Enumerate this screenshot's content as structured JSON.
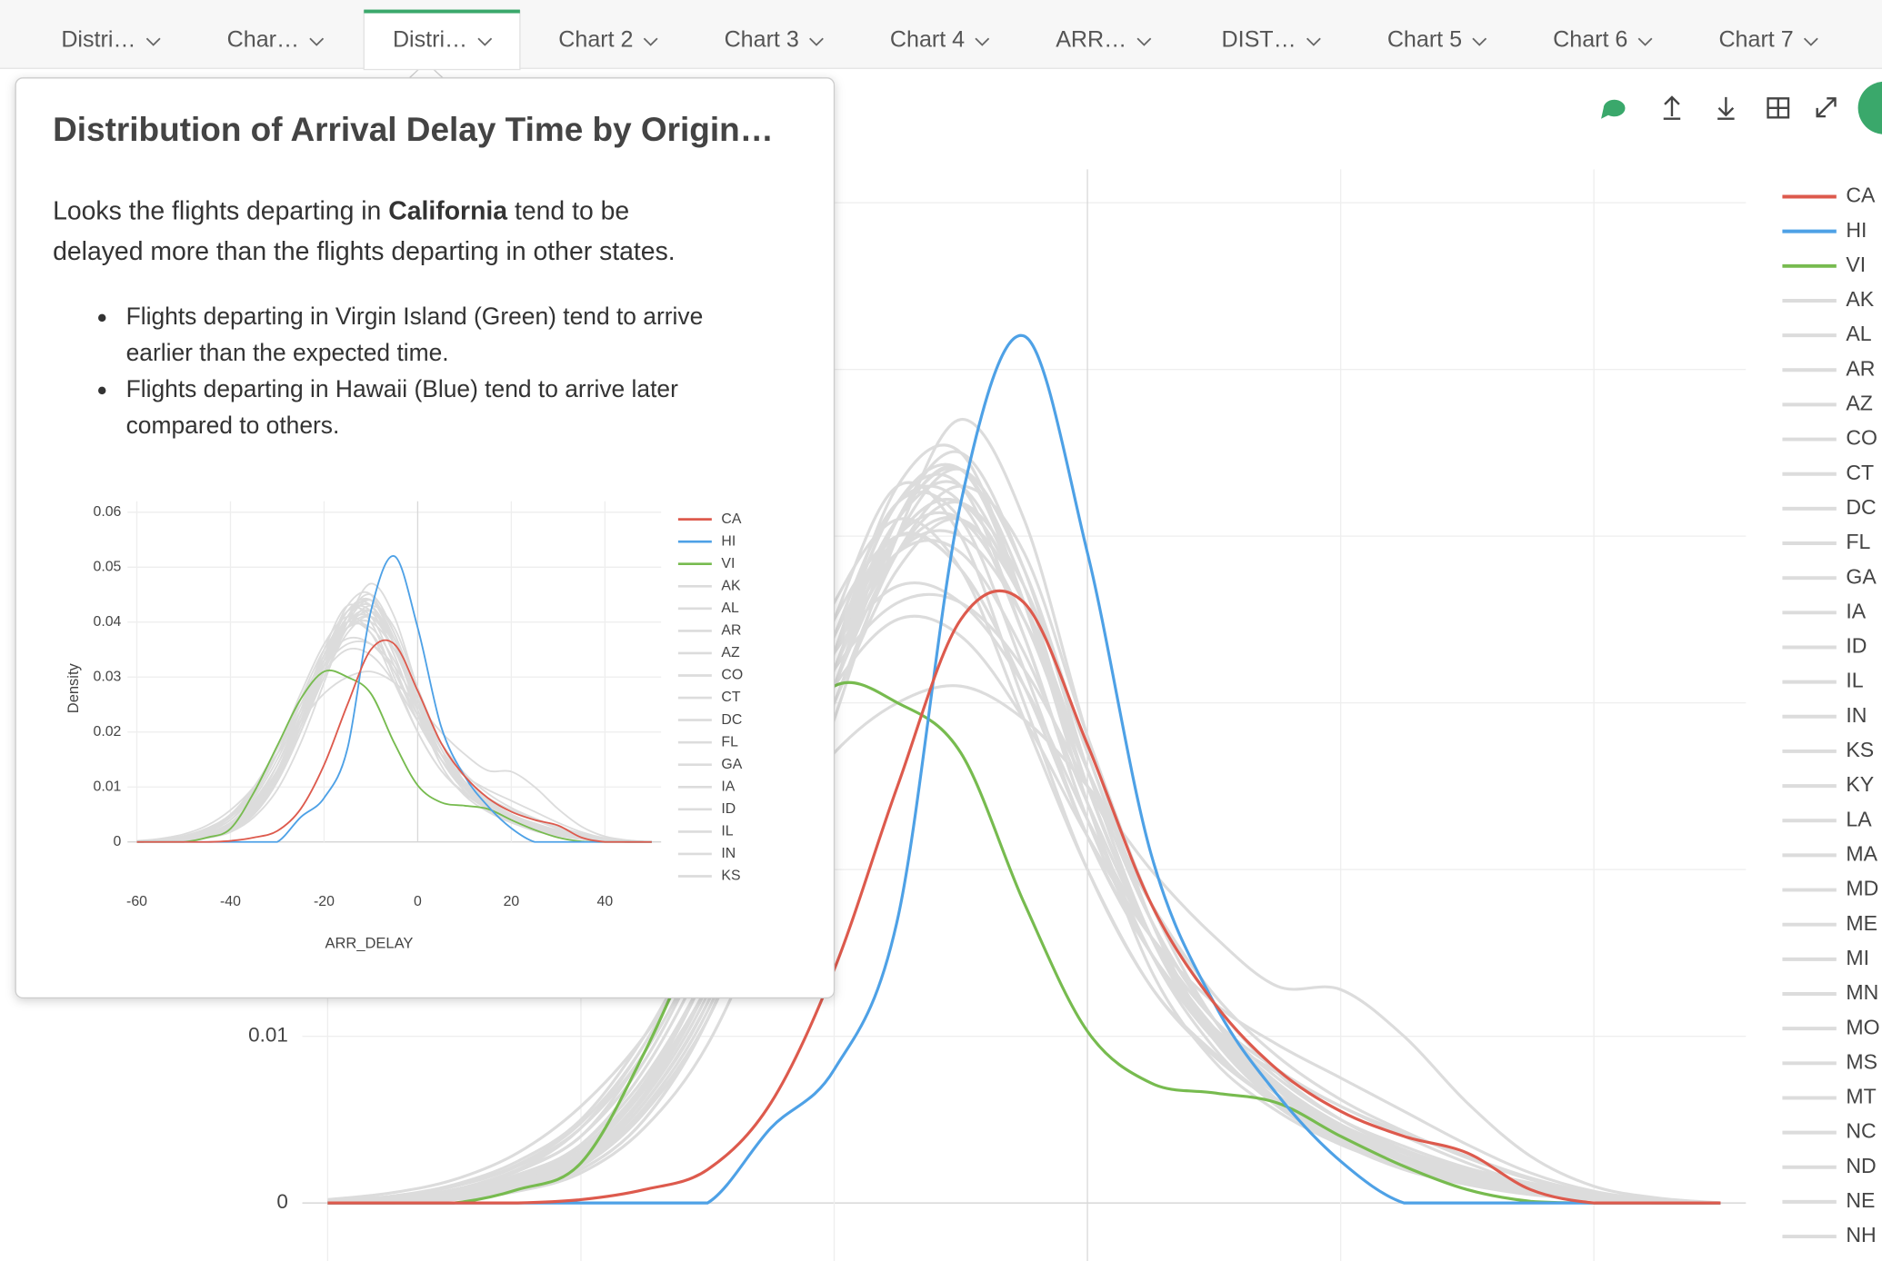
{
  "tabs": [
    "Distri…",
    "Char…",
    "Distri…",
    "Chart 2",
    "Chart 3",
    "Chart 4",
    "ARR…",
    "DIST…",
    "Chart 5",
    "Chart 6",
    "Chart 7"
  ],
  "active_tab": 2,
  "popover": {
    "title": "Distribution of Arrival Delay Time by Origin…",
    "paragraph": [
      [
        {
          "text": "Looks the flights departing in "
        },
        {
          "text": "California",
          "bold": true
        },
        {
          "text": " tend to be"
        }
      ],
      [
        {
          "text": "delayed more than the flights departing in other states."
        }
      ]
    ],
    "bullets": [
      [
        "Flights departing in Virgin Island (Green) tend to arrive",
        "earlier than the expected time."
      ],
      [
        "Flights departing in Hawaii (Blue) tend to arrive later",
        "compared to others."
      ]
    ]
  },
  "chart_data": {
    "type": "line",
    "x_label": "ARR_DELAY",
    "y_label": "Density",
    "x": [
      -60,
      -55,
      -50,
      -45,
      -40,
      -35,
      -30,
      -25,
      -20,
      -15,
      -10,
      -5,
      0,
      5,
      10,
      15,
      20,
      25,
      30,
      35,
      40,
      45,
      50
    ],
    "xlim": [
      -62,
      52
    ],
    "xticks": [
      -60,
      -40,
      -20,
      0,
      20,
      40
    ],
    "ylim": [
      0,
      0.062
    ],
    "yticks": [
      0,
      0.01,
      0.02,
      0.03,
      0.04,
      0.05,
      0.06
    ],
    "grid": true,
    "series": [
      {
        "name": "CA",
        "color": "#dd5a4d",
        "values": [
          0,
          0,
          0,
          0,
          0.0002,
          0.0008,
          0.002,
          0.006,
          0.014,
          0.025,
          0.035,
          0.036,
          0.0275,
          0.018,
          0.012,
          0.008,
          0.0055,
          0.004,
          0.003,
          0.0008,
          0,
          0,
          0
        ]
      },
      {
        "name": "HI",
        "color": "#4ea1e6",
        "values": [
          0,
          0,
          0,
          0,
          0,
          0,
          0,
          0.0045,
          0.008,
          0.017,
          0.042,
          0.052,
          0.039,
          0.021,
          0.012,
          0.0065,
          0.0025,
          0,
          0,
          0,
          0,
          0,
          0
        ]
      },
      {
        "name": "VI",
        "color": "#77bb4f",
        "values": [
          0,
          0,
          0,
          0.0008,
          0.0024,
          0.009,
          0.0175,
          0.026,
          0.031,
          0.03,
          0.027,
          0.018,
          0.0103,
          0.0072,
          0.0066,
          0.006,
          0.004,
          0.0022,
          0.0008,
          0.0001,
          0,
          0,
          0
        ]
      },
      {
        "name": "AK",
        "color": "#dcdcdc",
        "values": [
          0,
          0.0002,
          0.0006,
          0.0015,
          0.003,
          0.007,
          0.013,
          0.021,
          0.03,
          0.038,
          0.041,
          0.036,
          0.026,
          0.017,
          0.011,
          0.007,
          0.0045,
          0.003,
          0.0018,
          0.001,
          0.0004,
          0.0001,
          0
        ]
      },
      {
        "name": "AL",
        "color": "#dcdcdc",
        "values": [
          0,
          0.0001,
          0.0004,
          0.001,
          0.0025,
          0.006,
          0.012,
          0.022,
          0.033,
          0.042,
          0.043,
          0.034,
          0.023,
          0.015,
          0.01,
          0.0065,
          0.004,
          0.0025,
          0.0015,
          0.0008,
          0.0003,
          0.0001,
          0
        ]
      },
      {
        "name": "AR",
        "color": "#dcdcdc",
        "values": [
          0.0001,
          0.0003,
          0.0008,
          0.002,
          0.004,
          0.009,
          0.016,
          0.025,
          0.034,
          0.04,
          0.038,
          0.031,
          0.022,
          0.015,
          0.01,
          0.0068,
          0.0045,
          0.003,
          0.0018,
          0.0009,
          0.0004,
          0.0001,
          0
        ]
      },
      {
        "name": "AZ",
        "color": "#dcdcdc",
        "values": [
          0,
          0.0001,
          0.0003,
          0.0009,
          0.002,
          0.005,
          0.011,
          0.02,
          0.031,
          0.041,
          0.045,
          0.038,
          0.026,
          0.016,
          0.01,
          0.0062,
          0.0038,
          0.0022,
          0.0012,
          0.0006,
          0.0002,
          0,
          0
        ]
      },
      {
        "name": "CO",
        "color": "#dcdcdc",
        "values": [
          0,
          0.0002,
          0.0005,
          0.0013,
          0.0028,
          0.0065,
          0.013,
          0.022,
          0.032,
          0.039,
          0.04,
          0.035,
          0.026,
          0.018,
          0.012,
          0.0078,
          0.005,
          0.0032,
          0.002,
          0.0011,
          0.0005,
          0.0001,
          0
        ]
      },
      {
        "name": "CT",
        "color": "#dcdcdc",
        "values": [
          0,
          0.0001,
          0.0004,
          0.0012,
          0.003,
          0.007,
          0.014,
          0.024,
          0.035,
          0.043,
          0.04,
          0.03,
          0.02,
          0.013,
          0.009,
          0.006,
          0.0042,
          0.0028,
          0.0017,
          0.0009,
          0.0003,
          0.0001,
          0
        ]
      },
      {
        "name": "DC",
        "color": "#dcdcdc",
        "values": [
          0,
          0,
          0.0002,
          0.0007,
          0.0018,
          0.0045,
          0.0095,
          0.018,
          0.029,
          0.04,
          0.047,
          0.041,
          0.028,
          0.017,
          0.01,
          0.006,
          0.0036,
          0.002,
          0.0011,
          0.0005,
          0.0002,
          0,
          0
        ]
      },
      {
        "name": "FL",
        "color": "#dcdcdc",
        "values": [
          0.0001,
          0.0003,
          0.0007,
          0.0017,
          0.0035,
          0.008,
          0.015,
          0.024,
          0.033,
          0.039,
          0.039,
          0.033,
          0.024,
          0.016,
          0.011,
          0.0075,
          0.005,
          0.0034,
          0.0021,
          0.0012,
          0.0005,
          0.0002,
          0
        ]
      },
      {
        "name": "GA",
        "color": "#dcdcdc",
        "values": [
          0,
          0.0001,
          0.0003,
          0.001,
          0.0024,
          0.006,
          0.012,
          0.021,
          0.031,
          0.039,
          0.042,
          0.037,
          0.027,
          0.017,
          0.011,
          0.0068,
          0.0043,
          0.0027,
          0.0016,
          0.0008,
          0.0003,
          0.0001,
          0
        ]
      },
      {
        "name": "IA",
        "color": "#dcdcdc",
        "values": [
          0,
          0.0002,
          0.0006,
          0.0016,
          0.0035,
          0.0075,
          0.014,
          0.023,
          0.033,
          0.041,
          0.044,
          0.036,
          0.024,
          0.014,
          0.0085,
          0.0055,
          0.0035,
          0.0022,
          0.0013,
          0.0006,
          0.0002,
          0,
          0
        ]
      },
      {
        "name": "ID",
        "color": "#dcdcdc",
        "values": [
          0.0001,
          0.0004,
          0.001,
          0.0022,
          0.0045,
          0.009,
          0.016,
          0.024,
          0.031,
          0.035,
          0.034,
          0.029,
          0.022,
          0.016,
          0.012,
          0.0095,
          0.0075,
          0.0055,
          0.0035,
          0.0018,
          0.0007,
          0.0002,
          0
        ]
      },
      {
        "name": "IL",
        "color": "#dcdcdc",
        "values": [
          0,
          0.0001,
          0.0003,
          0.0009,
          0.0022,
          0.0055,
          0.011,
          0.02,
          0.031,
          0.04,
          0.044,
          0.038,
          0.027,
          0.017,
          0.011,
          0.007,
          0.0045,
          0.0028,
          0.0016,
          0.0008,
          0.0003,
          0.0001,
          0
        ]
      },
      {
        "name": "IN",
        "color": "#dcdcdc",
        "values": [
          0,
          0.0001,
          0.0004,
          0.0011,
          0.0026,
          0.006,
          0.012,
          0.021,
          0.032,
          0.04,
          0.042,
          0.036,
          0.026,
          0.017,
          0.011,
          0.0069,
          0.0042,
          0.0026,
          0.0015,
          0.0007,
          0.0003,
          0.0001,
          0
        ]
      },
      {
        "name": "KS",
        "color": "#dcdcdc",
        "values": [
          0.0001,
          0.0003,
          0.0008,
          0.002,
          0.0045,
          0.0095,
          0.017,
          0.027,
          0.036,
          0.041,
          0.038,
          0.029,
          0.02,
          0.013,
          0.0088,
          0.006,
          0.0041,
          0.0027,
          0.0016,
          0.0008,
          0.0003,
          0.0001,
          0
        ]
      },
      {
        "name": "KY",
        "color": "#dcdcdc",
        "values": [
          0,
          0.0001,
          0.0003,
          0.0008,
          0.002,
          0.005,
          0.011,
          0.021,
          0.033,
          0.043,
          0.045,
          0.036,
          0.024,
          0.015,
          0.0093,
          0.0058,
          0.0036,
          0.0022,
          0.0012,
          0.0006,
          0.0002,
          0,
          0
        ]
      },
      {
        "name": "LA",
        "color": "#dcdcdc",
        "values": [
          0,
          0.0002,
          0.0006,
          0.0015,
          0.0033,
          0.0072,
          0.014,
          0.023,
          0.033,
          0.04,
          0.041,
          0.035,
          0.025,
          0.016,
          0.0105,
          0.007,
          0.0046,
          0.003,
          0.0018,
          0.0009,
          0.0003,
          0.0001,
          0
        ]
      },
      {
        "name": "MA",
        "color": "#dcdcdc",
        "values": [
          0,
          0.0001,
          0.0004,
          0.0012,
          0.0029,
          0.0068,
          0.013,
          0.023,
          0.034,
          0.042,
          0.041,
          0.032,
          0.022,
          0.015,
          0.0105,
          0.0078,
          0.0058,
          0.004,
          0.0024,
          0.0011,
          0.0004,
          0.0001,
          0
        ]
      },
      {
        "name": "MD",
        "color": "#dcdcdc",
        "values": [
          0,
          0.0001,
          0.0003,
          0.0009,
          0.0022,
          0.0054,
          0.011,
          0.02,
          0.03,
          0.039,
          0.043,
          0.039,
          0.028,
          0.018,
          0.011,
          0.0068,
          0.0042,
          0.0026,
          0.0014,
          0.0007,
          0.0002,
          0,
          0
        ]
      },
      {
        "name": "ME",
        "color": "#dcdcdc",
        "values": [
          0.0002,
          0.0006,
          0.0014,
          0.003,
          0.0058,
          0.01,
          0.016,
          0.022,
          0.027,
          0.03,
          0.031,
          0.029,
          0.025,
          0.02,
          0.016,
          0.013,
          0.0128,
          0.01,
          0.006,
          0.0028,
          0.001,
          0.0003,
          0
        ]
      },
      {
        "name": "MI",
        "color": "#dcdcdc",
        "values": [
          0,
          0.0001,
          0.0004,
          0.0011,
          0.0026,
          0.006,
          0.012,
          0.022,
          0.033,
          0.041,
          0.043,
          0.036,
          0.025,
          0.016,
          0.0102,
          0.0065,
          0.004,
          0.0025,
          0.0014,
          0.0007,
          0.0002,
          0,
          0
        ]
      },
      {
        "name": "MN",
        "color": "#dcdcdc",
        "values": [
          0,
          0.0002,
          0.0005,
          0.0014,
          0.0031,
          0.007,
          0.013,
          0.022,
          0.032,
          0.039,
          0.041,
          0.036,
          0.026,
          0.017,
          0.011,
          0.0072,
          0.0047,
          0.003,
          0.0018,
          0.0009,
          0.0003,
          0.0001,
          0
        ]
      },
      {
        "name": "MO",
        "color": "#dcdcdc",
        "values": [
          0,
          0.0001,
          0.0004,
          0.0011,
          0.0027,
          0.0063,
          0.0125,
          0.022,
          0.033,
          0.042,
          0.044,
          0.037,
          0.025,
          0.016,
          0.0098,
          0.006,
          0.0037,
          0.0023,
          0.0013,
          0.0006,
          0.0002,
          0,
          0
        ]
      },
      {
        "name": "MS",
        "color": "#dcdcdc",
        "values": [
          0.0001,
          0.0003,
          0.0008,
          0.0019,
          0.004,
          0.0085,
          0.016,
          0.026,
          0.035,
          0.04,
          0.038,
          0.031,
          0.022,
          0.015,
          0.01,
          0.0069,
          0.0047,
          0.0031,
          0.0019,
          0.001,
          0.0004,
          0.0001,
          0
        ]
      },
      {
        "name": "MT",
        "color": "#dcdcdc",
        "values": [
          0.0001,
          0.0004,
          0.001,
          0.0023,
          0.0048,
          0.0095,
          0.017,
          0.026,
          0.033,
          0.037,
          0.036,
          0.031,
          0.023,
          0.016,
          0.011,
          0.008,
          0.0058,
          0.0042,
          0.0028,
          0.0015,
          0.0006,
          0.0002,
          0
        ]
      },
      {
        "name": "NC",
        "color": "#dcdcdc",
        "values": [
          0,
          0.0001,
          0.0003,
          0.0009,
          0.0023,
          0.0057,
          0.0115,
          0.021,
          0.032,
          0.041,
          0.044,
          0.038,
          0.026,
          0.016,
          0.0098,
          0.0061,
          0.0038,
          0.0023,
          0.0013,
          0.0006,
          0.0002,
          0,
          0
        ]
      },
      {
        "name": "ND",
        "color": "#dcdcdc",
        "values": [
          0.0001,
          0.0004,
          0.0011,
          0.0025,
          0.005,
          0.01,
          0.017,
          0.025,
          0.032,
          0.036,
          0.036,
          0.032,
          0.025,
          0.018,
          0.0125,
          0.0088,
          0.0062,
          0.0043,
          0.0027,
          0.0014,
          0.0005,
          0.0001,
          0
        ]
      },
      {
        "name": "NE",
        "color": "#dcdcdc",
        "values": [
          0,
          0.0002,
          0.0005,
          0.0013,
          0.003,
          0.0068,
          0.013,
          0.022,
          0.032,
          0.04,
          0.042,
          0.036,
          0.025,
          0.016,
          0.0104,
          0.0068,
          0.0044,
          0.0028,
          0.0016,
          0.0008,
          0.0003,
          0.0001,
          0
        ]
      },
      {
        "name": "NH",
        "color": "#dcdcdc",
        "values": [
          0,
          0.0001,
          0.0004,
          0.0011,
          0.0027,
          0.0065,
          0.013,
          0.023,
          0.034,
          0.042,
          0.042,
          0.034,
          0.023,
          0.015,
          0.0098,
          0.0065,
          0.0043,
          0.0028,
          0.0016,
          0.0008,
          0.0003,
          0.0001,
          0
        ]
      }
    ]
  }
}
